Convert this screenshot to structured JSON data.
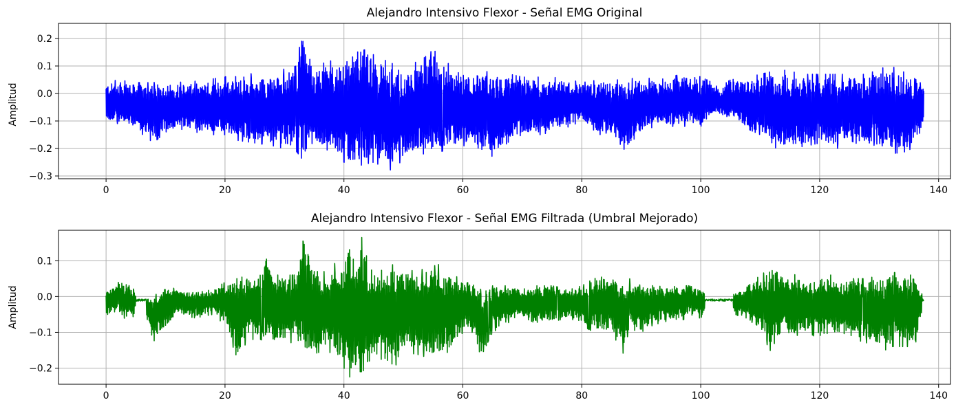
{
  "chart_data": [
    {
      "type": "line",
      "title": "Alejandro Intensivo Flexor - Señal EMG Original",
      "xlabel": "",
      "ylabel": "Amplitud",
      "xlim": [
        -8,
        142
      ],
      "ylim": [
        -0.31,
        0.255
      ],
      "xticks": [
        0,
        20,
        40,
        60,
        80,
        100,
        120,
        140
      ],
      "xtick_labels": [
        "0",
        "20",
        "40",
        "60",
        "80",
        "100",
        "120",
        "140"
      ],
      "yticks": [
        0.2,
        0.1,
        0.0,
        -0.1,
        -0.2,
        -0.3
      ],
      "ytick_labels": [
        "0.2",
        "0.1",
        "0.0",
        "−0.1",
        "−0.2",
        "−0.3"
      ],
      "grid": true,
      "color": "#0000ff",
      "series": [
        {
          "x": [
            0,
            2,
            5,
            8,
            10,
            13,
            17,
            20,
            22,
            25,
            28,
            30,
            32,
            33,
            35,
            38,
            40,
            42,
            43,
            45,
            48,
            50,
            53,
            55,
            58,
            60,
            63,
            65,
            68,
            70,
            73,
            75,
            78,
            80,
            83,
            85,
            87,
            90,
            93,
            95,
            98,
            100,
            102,
            103,
            105,
            108,
            110,
            112,
            113,
            115,
            118,
            120,
            123,
            125,
            128,
            130,
            132,
            135,
            137.5
          ],
          "upper": [
            0.04,
            0.05,
            0.04,
            0.04,
            0.05,
            0.04,
            0.05,
            0.06,
            0.08,
            0.07,
            0.07,
            0.09,
            0.1,
            0.23,
            0.1,
            0.12,
            0.13,
            0.17,
            0.2,
            0.14,
            0.11,
            0.1,
            0.12,
            0.16,
            0.1,
            0.09,
            0.08,
            0.08,
            0.07,
            0.06,
            0.06,
            0.06,
            0.05,
            0.04,
            0.05,
            0.05,
            0.05,
            0.06,
            0.05,
            0.06,
            0.08,
            0.06,
            0.04,
            0.02,
            0.05,
            0.06,
            0.07,
            0.08,
            0.09,
            0.08,
            0.07,
            0.07,
            0.07,
            0.07,
            0.07,
            0.09,
            0.1,
            0.07,
            0.03
          ],
          "lower": [
            -0.1,
            -0.11,
            -0.13,
            -0.18,
            -0.14,
            -0.13,
            -0.15,
            -0.15,
            -0.17,
            -0.18,
            -0.19,
            -0.2,
            -0.21,
            -0.24,
            -0.2,
            -0.23,
            -0.25,
            -0.27,
            -0.26,
            -0.25,
            -0.28,
            -0.24,
            -0.22,
            -0.22,
            -0.2,
            -0.19,
            -0.2,
            -0.23,
            -0.17,
            -0.15,
            -0.15,
            -0.14,
            -0.12,
            -0.1,
            -0.15,
            -0.14,
            -0.22,
            -0.13,
            -0.12,
            -0.12,
            -0.12,
            -0.12,
            -0.08,
            -0.07,
            -0.09,
            -0.13,
            -0.15,
            -0.18,
            -0.21,
            -0.2,
            -0.19,
            -0.18,
            -0.2,
            -0.17,
            -0.2,
            -0.18,
            -0.22,
            -0.21,
            -0.12
          ]
        }
      ]
    },
    {
      "type": "line",
      "title": "Alejandro Intensivo Flexor - Señal EMG Filtrada (Umbral Mejorado)",
      "xlabel": "",
      "ylabel": "Amplitud",
      "xlim": [
        -8,
        142
      ],
      "ylim": [
        -0.245,
        0.185
      ],
      "xticks": [
        0,
        20,
        40,
        60,
        80,
        100,
        120,
        140
      ],
      "xtick_labels": [
        "0",
        "20",
        "40",
        "60",
        "80",
        "100",
        "120",
        "140"
      ],
      "yticks": [
        0.1,
        0.0,
        -0.1,
        -0.2
      ],
      "ytick_labels": [
        "0.1",
        "0.0",
        "−0.1",
        "−0.2"
      ],
      "grid": true,
      "color": "#008000",
      "series": [
        {
          "x": [
            0,
            2,
            4,
            6,
            8,
            10,
            12,
            15,
            18,
            20,
            22,
            24,
            26,
            27,
            28,
            30,
            32,
            33,
            35,
            37,
            38,
            40,
            41,
            42,
            43,
            44,
            46,
            48,
            50,
            52,
            54,
            56,
            58,
            60,
            62,
            63,
            65,
            68,
            70,
            72,
            75,
            78,
            80,
            82,
            85,
            87,
            88,
            90,
            92,
            94,
            96,
            98,
            100,
            102,
            104,
            106,
            107,
            108,
            110,
            111,
            112,
            113,
            114,
            116,
            118,
            120,
            122,
            124,
            126,
            128,
            130,
            131,
            132,
            134,
            136,
            137.5
          ],
          "upper": [
            0.015,
            0.04,
            0.03,
            0.0,
            0.0,
            0.03,
            0.02,
            0.01,
            0.02,
            0.04,
            0.05,
            0.06,
            0.07,
            0.12,
            0.06,
            0.06,
            0.06,
            0.16,
            0.07,
            0.07,
            0.09,
            0.1,
            0.17,
            0.1,
            0.165,
            0.1,
            0.07,
            0.09,
            0.08,
            0.07,
            0.08,
            0.09,
            0.06,
            0.05,
            0.04,
            0.02,
            0.03,
            0.03,
            0.02,
            0.03,
            0.03,
            0.02,
            0.03,
            0.05,
            0.06,
            0.04,
            0.05,
            0.03,
            0.04,
            0.02,
            0.03,
            0.03,
            0.02,
            0.0,
            0.0,
            0.015,
            0.015,
            0.03,
            0.06,
            0.07,
            0.09,
            0.08,
            0.07,
            0.06,
            0.04,
            0.06,
            0.06,
            0.05,
            0.05,
            0.05,
            0.06,
            0.05,
            0.07,
            0.06,
            0.06,
            0.0
          ],
          "lower": [
            -0.05,
            -0.05,
            -0.07,
            -0.02,
            -0.125,
            -0.09,
            -0.05,
            -0.06,
            -0.05,
            -0.08,
            -0.17,
            -0.12,
            -0.12,
            -0.13,
            -0.14,
            -0.14,
            -0.12,
            -0.17,
            -0.16,
            -0.15,
            -0.16,
            -0.2,
            -0.225,
            -0.21,
            -0.21,
            -0.2,
            -0.17,
            -0.21,
            -0.16,
            -0.16,
            -0.17,
            -0.17,
            -0.15,
            -0.1,
            -0.1,
            -0.17,
            -0.1,
            -0.07,
            -0.06,
            -0.08,
            -0.07,
            -0.06,
            -0.08,
            -0.1,
            -0.1,
            -0.16,
            -0.09,
            -0.1,
            -0.08,
            -0.07,
            -0.07,
            -0.06,
            -0.06,
            -0.02,
            -0.02,
            -0.06,
            -0.06,
            -0.06,
            -0.1,
            -0.13,
            -0.16,
            -0.13,
            -0.11,
            -0.11,
            -0.1,
            -0.12,
            -0.11,
            -0.12,
            -0.12,
            -0.13,
            -0.14,
            -0.15,
            -0.14,
            -0.14,
            -0.14,
            -0.03
          ]
        }
      ]
    }
  ]
}
